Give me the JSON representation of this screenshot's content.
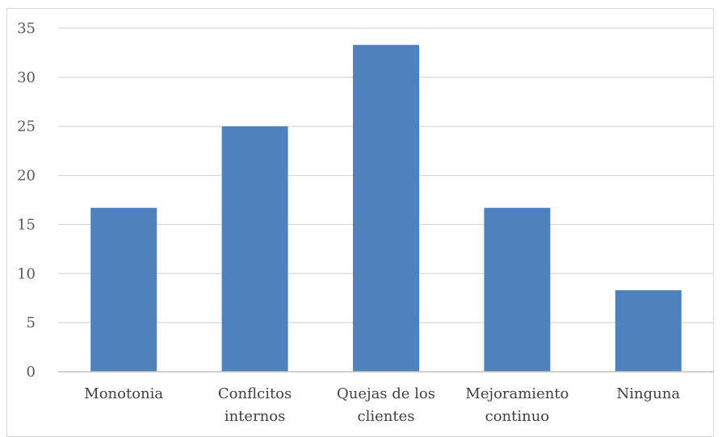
{
  "chart_data": {
    "type": "bar",
    "categories": [
      [
        "Monotonia"
      ],
      [
        "Conflcitos",
        "internos"
      ],
      [
        "Quejas de los",
        "clientes"
      ],
      [
        "Mejoramiento",
        "continuo"
      ],
      [
        "Ninguna"
      ]
    ],
    "values": [
      16.7,
      25,
      33.3,
      16.7,
      8.3
    ],
    "ylim": [
      0,
      35
    ],
    "yticks": [
      0,
      5,
      10,
      15,
      20,
      25,
      30,
      35
    ],
    "grid": true,
    "legend": "none",
    "title": "",
    "xlabel": "",
    "ylabel": "",
    "colors": {
      "bar": "#4f81bd",
      "grid": "#d9d9d9",
      "axis": "#bfbfbf"
    }
  }
}
